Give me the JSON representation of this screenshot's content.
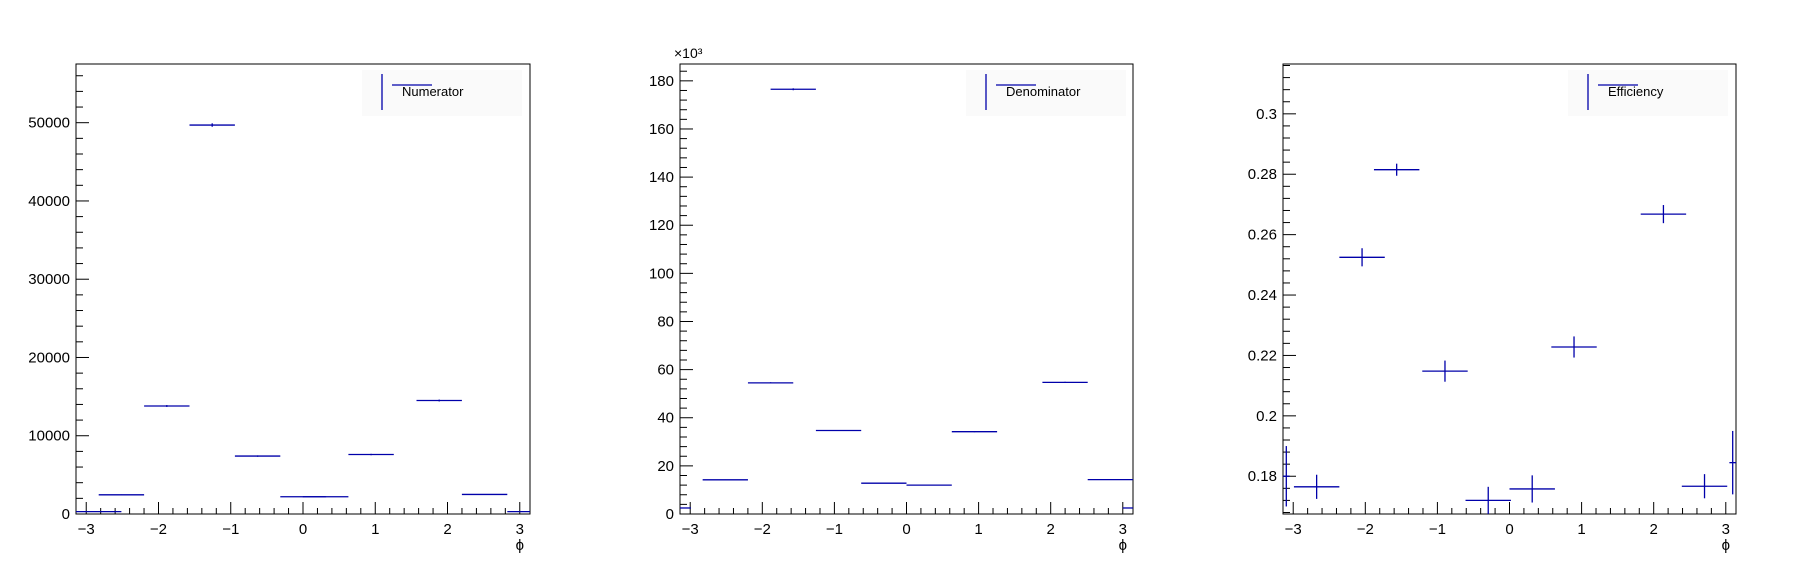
{
  "colors": {
    "series": "#0000aa",
    "axis": "#000000",
    "legend_bg": "#fafafa"
  },
  "chart_data": [
    {
      "type": "scatter",
      "title": "",
      "xlabel": "ϕ",
      "ylabel": "",
      "y_exponent_label": "",
      "legend": {
        "label": "Numerator",
        "placement": "top-right"
      },
      "xlim": [
        -3.14159,
        3.14159
      ],
      "ylim": [
        0,
        57500
      ],
      "x_ticks": [
        -3,
        -2,
        -1,
        0,
        1,
        2,
        3
      ],
      "y_ticks": [
        0,
        10000,
        20000,
        30000,
        40000,
        50000
      ],
      "y_tick_labels": [
        "0",
        "10000",
        "20000",
        "30000",
        "40000",
        "50000"
      ],
      "y_minor_step": 2000,
      "bins": [
        {
          "xlo": -3.14159,
          "xhi": -2.51327,
          "y": 300,
          "err": 20
        },
        {
          "xlo": -2.82743,
          "xhi": -2.19911,
          "y": 2450,
          "err": 50
        },
        {
          "xlo": -2.19911,
          "xhi": -1.5708,
          "y": 13800,
          "err": 120
        },
        {
          "xlo": -1.5708,
          "xhi": -0.94248,
          "y": 49700,
          "err": 220
        },
        {
          "xlo": -0.94248,
          "xhi": -0.31416,
          "y": 7400,
          "err": 90
        },
        {
          "xlo": -0.31416,
          "xhi": 0.31416,
          "y": 2200,
          "err": 50
        },
        {
          "xlo": 0.0,
          "xhi": 0.62832,
          "y": 2200,
          "err": 50
        },
        {
          "xlo": 0.62832,
          "xhi": 1.25664,
          "y": 7600,
          "err": 90
        },
        {
          "xlo": 1.5708,
          "xhi": 2.19911,
          "y": 14500,
          "err": 120
        },
        {
          "xlo": 2.19911,
          "xhi": 2.82743,
          "y": 2500,
          "err": 50
        },
        {
          "xlo": 2.82743,
          "xhi": 3.14159,
          "y": 300,
          "err": 20
        }
      ]
    },
    {
      "type": "scatter",
      "title": "",
      "xlabel": "ϕ",
      "ylabel": "",
      "y_exponent_label": "×10³",
      "legend": {
        "label": "Denominator",
        "placement": "top-right"
      },
      "xlim": [
        -3.14159,
        3.14159
      ],
      "ylim": [
        0,
        187
      ],
      "x_ticks": [
        -3,
        -2,
        -1,
        0,
        1,
        2,
        3
      ],
      "y_ticks": [
        0,
        20,
        40,
        60,
        80,
        100,
        120,
        140,
        160,
        180
      ],
      "y_tick_labels": [
        "0",
        "20",
        "40",
        "60",
        "80",
        "100",
        "120",
        "140",
        "160",
        "180"
      ],
      "y_minor_step": 4,
      "bins": [
        {
          "xlo": -3.14159,
          "xhi": -2.99,
          "y": 2.5,
          "err": 0.1
        },
        {
          "xlo": -2.82743,
          "xhi": -2.19911,
          "y": 14.2,
          "err": 0.15
        },
        {
          "xlo": -2.19911,
          "xhi": -1.5708,
          "y": 54.5,
          "err": 0.25
        },
        {
          "xlo": -1.88496,
          "xhi": -1.25664,
          "y": 176.5,
          "err": 0.4
        },
        {
          "xlo": -1.25664,
          "xhi": -0.62832,
          "y": 34.7,
          "err": 0.2
        },
        {
          "xlo": -0.62832,
          "xhi": 0.0,
          "y": 12.8,
          "err": 0.12
        },
        {
          "xlo": 0.0,
          "xhi": 0.62832,
          "y": 12.0,
          "err": 0.12
        },
        {
          "xlo": 0.62832,
          "xhi": 1.25664,
          "y": 34.2,
          "err": 0.2
        },
        {
          "xlo": 1.88496,
          "xhi": 2.51327,
          "y": 54.7,
          "err": 0.25
        },
        {
          "xlo": 2.51327,
          "xhi": 3.14159,
          "y": 14.3,
          "err": 0.15
        },
        {
          "xlo": 3.0,
          "xhi": 3.14159,
          "y": 2.5,
          "err": 0.1
        }
      ]
    },
    {
      "type": "scatter",
      "title": "",
      "xlabel": "ϕ",
      "ylabel": "",
      "y_exponent_label": "",
      "legend": {
        "label": "Efficiency",
        "placement": "top-right"
      },
      "xlim": [
        -3.14159,
        3.14159
      ],
      "ylim": [
        0.1675,
        0.3165
      ],
      "x_ticks": [
        -3,
        -2,
        -1,
        0,
        1,
        2,
        3
      ],
      "y_ticks": [
        0.18,
        0.2,
        0.22,
        0.24,
        0.26,
        0.28,
        0.3
      ],
      "y_tick_labels": [
        "0.18",
        "0.2",
        "0.22",
        "0.24",
        "0.26",
        "0.28",
        "0.3"
      ],
      "y_minor_step": 0.004,
      "bins": [
        {
          "xlo": -3.14159,
          "xhi": -3.05,
          "y": 0.18,
          "err": 0.01
        },
        {
          "xlo": -2.99,
          "xhi": -2.36,
          "y": 0.1765,
          "err": 0.004
        },
        {
          "xlo": -2.36,
          "xhi": -1.73,
          "y": 0.2525,
          "err": 0.003
        },
        {
          "xlo": -1.88,
          "xhi": -1.25,
          "y": 0.2815,
          "err": 0.002
        },
        {
          "xlo": -1.21,
          "xhi": -0.58,
          "y": 0.2148,
          "err": 0.0035
        },
        {
          "xlo": -0.61,
          "xhi": 0.02,
          "y": 0.172,
          "err": 0.0045
        },
        {
          "xlo": 0.0,
          "xhi": 0.63,
          "y": 0.1758,
          "err": 0.0045
        },
        {
          "xlo": 0.58,
          "xhi": 1.21,
          "y": 0.2228,
          "err": 0.0035
        },
        {
          "xlo": 1.82,
          "xhi": 2.45,
          "y": 0.2668,
          "err": 0.003
        },
        {
          "xlo": 2.39,
          "xhi": 3.02,
          "y": 0.1767,
          "err": 0.004
        },
        {
          "xlo": 3.05,
          "xhi": 3.14159,
          "y": 0.1845,
          "err": 0.0105
        }
      ]
    }
  ]
}
